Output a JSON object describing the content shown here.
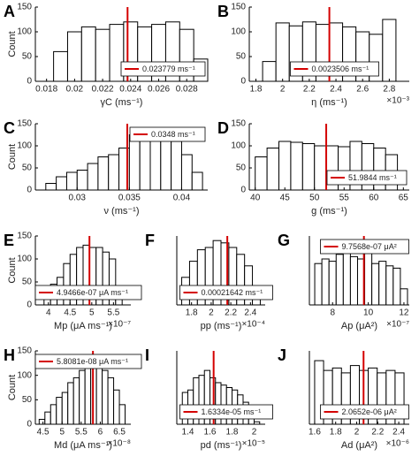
{
  "chart_data": [
    {
      "type": "histogram",
      "panel": "A",
      "xlabel": "γC (ms⁻¹)",
      "ylabel": "Count",
      "bins": [
        0.0185,
        0.0195,
        0.0205,
        0.0215,
        0.0225,
        0.0235,
        0.0245,
        0.0255,
        0.0265,
        0.0275,
        0.0285,
        0.0295
      ],
      "counts": [
        60,
        100,
        110,
        105,
        115,
        120,
        110,
        115,
        120,
        105,
        45
      ],
      "xlim": [
        0.0172,
        0.0295
      ],
      "ylim": [
        0,
        150
      ],
      "xticks": [
        0.018,
        0.02,
        0.022,
        0.024,
        0.026,
        0.028
      ],
      "yticks": [
        0,
        50,
        100,
        150
      ],
      "vline": 0.023779,
      "vline_label": "0.023779 ms⁻¹",
      "vline_color": "#d40000",
      "legend": "lower right",
      "color": "#ffffff"
    },
    {
      "type": "histogram",
      "panel": "B",
      "xlabel": "η (ms⁻¹)",
      "x_exponent": "×10⁻³",
      "bins": [
        1.85,
        1.95,
        2.05,
        2.15,
        2.25,
        2.35,
        2.45,
        2.55,
        2.65,
        2.75,
        2.85
      ],
      "counts": [
        40,
        118,
        112,
        120,
        115,
        118,
        110,
        100,
        95,
        125
      ],
      "xlim": [
        1.75,
        2.95
      ],
      "ylim": [
        0,
        150
      ],
      "xticks": [
        1.8,
        2,
        2.2,
        2.4,
        2.6,
        2.8
      ],
      "yticks": [
        0,
        50,
        100,
        150
      ],
      "vline": 2.3506,
      "vline_label": "0.0023506 ms⁻¹",
      "vline_color": "#d40000",
      "legend": "lower center",
      "color": "#ffffff"
    },
    {
      "type": "histogram",
      "panel": "C",
      "xlabel": "ν (ms⁻¹)",
      "ylabel": "Count",
      "bins": [
        0.027,
        0.028,
        0.029,
        0.03,
        0.031,
        0.032,
        0.033,
        0.034,
        0.035,
        0.036,
        0.037,
        0.038,
        0.039,
        0.04,
        0.041,
        0.042
      ],
      "counts": [
        15,
        30,
        40,
        45,
        60,
        75,
        80,
        95,
        125,
        130,
        140,
        130,
        110,
        80,
        40
      ],
      "xlim": [
        0.026,
        0.0425
      ],
      "ylim": [
        0,
        150
      ],
      "xticks": [
        0.03,
        0.035,
        0.04
      ],
      "yticks": [
        0,
        50,
        100,
        150
      ],
      "vline": 0.0348,
      "vline_label": "0.0348 ms⁻¹",
      "vline_color": "#d40000",
      "legend": "upper right",
      "color": "#ffffff"
    },
    {
      "type": "histogram",
      "panel": "D",
      "xlabel": "g (ms⁻¹)",
      "bins": [
        40,
        42,
        44,
        46,
        48,
        50,
        52,
        54,
        56,
        58,
        60,
        62,
        64
      ],
      "counts": [
        75,
        95,
        110,
        108,
        105,
        100,
        100,
        98,
        110,
        105,
        95,
        80
      ],
      "xlim": [
        39,
        66
      ],
      "ylim": [
        0,
        150
      ],
      "xticks": [
        40,
        45,
        50,
        55,
        60,
        65
      ],
      "yticks": [
        0,
        50,
        100,
        150
      ],
      "vline": 51.9844,
      "vline_label": "51.9844 ms⁻¹",
      "vline_color": "#d40000",
      "legend": "lower right",
      "color": "#ffffff"
    },
    {
      "type": "histogram",
      "panel": "E",
      "xlabel": "Mp (μA ms⁻¹)",
      "ylabel": "Count",
      "x_exponent": "×10⁻⁷",
      "bins": [
        3.9,
        4.05,
        4.2,
        4.35,
        4.5,
        4.65,
        4.8,
        4.95,
        5.1,
        5.25,
        5.4,
        5.55,
        5.7
      ],
      "counts": [
        20,
        45,
        60,
        90,
        110,
        125,
        130,
        125,
        125,
        115,
        100,
        20
      ],
      "xlim": [
        3.7,
        5.9
      ],
      "ylim": [
        0,
        150
      ],
      "xticks": [
        4,
        4.5,
        5,
        5.5
      ],
      "yticks": [
        0,
        50,
        100,
        150
      ],
      "vline": 4.9466,
      "vline_label": "4.9466e-07 μA ms⁻¹",
      "vline_color": "#d40000",
      "legend": "lower center",
      "color": "#ffffff"
    },
    {
      "type": "histogram",
      "panel": "F",
      "xlabel": "pp (ms⁻¹)",
      "x_exponent": "×10⁻⁴",
      "bins": [
        1.7,
        1.78,
        1.86,
        1.94,
        2.02,
        2.1,
        2.18,
        2.26,
        2.34,
        2.42,
        2.5
      ],
      "counts": [
        60,
        95,
        120,
        125,
        140,
        135,
        125,
        110,
        85,
        30
      ],
      "xlim": [
        1.65,
        2.55
      ],
      "ylim": [
        0,
        150
      ],
      "xticks": [
        1.8,
        2,
        2.2,
        2.4
      ],
      "vline": 2.1642,
      "vline_label": "0.00021642 ms⁻¹",
      "vline_color": "#d40000",
      "legend": "lower center",
      "color": "#ffffff"
    },
    {
      "type": "histogram",
      "panel": "G",
      "xlabel": "Ap (μA²)",
      "x_exponent": "×10⁻⁷",
      "bins": [
        7,
        7.4,
        7.8,
        8.2,
        8.6,
        9,
        9.4,
        9.8,
        10.2,
        10.6,
        11,
        11.4,
        11.8,
        12.2
      ],
      "counts": [
        90,
        100,
        95,
        110,
        120,
        105,
        100,
        115,
        90,
        95,
        85,
        80,
        35
      ],
      "xlim": [
        6.7,
        12.3
      ],
      "ylim": [
        0,
        150
      ],
      "xticks": [
        8,
        10,
        12
      ],
      "vline": 9.7568,
      "vline_label": "9.7568e-07 μA²",
      "vline_color": "#d40000",
      "legend": "upper center",
      "color": "#ffffff"
    },
    {
      "type": "histogram",
      "panel": "H",
      "xlabel": "Md (μA ms⁻¹)",
      "ylabel": "Count",
      "x_exponent": "×10⁻⁸",
      "bins": [
        4.4,
        4.55,
        4.7,
        4.85,
        5,
        5.15,
        5.3,
        5.45,
        5.6,
        5.75,
        5.9,
        6.05,
        6.2,
        6.35,
        6.5,
        6.65
      ],
      "counts": [
        10,
        25,
        40,
        55,
        65,
        85,
        95,
        110,
        120,
        125,
        120,
        110,
        95,
        70,
        40
      ],
      "xlim": [
        4.3,
        6.8
      ],
      "ylim": [
        0,
        150
      ],
      "xticks": [
        4.5,
        5,
        5.5,
        6,
        6.5
      ],
      "yticks": [
        0,
        50,
        100,
        150
      ],
      "vline": 5.8081,
      "vline_label": "5.8081e-08 μA ms⁻¹",
      "vline_color": "#d40000",
      "legend": "upper center",
      "color": "#ffffff"
    },
    {
      "type": "histogram",
      "panel": "I",
      "xlabel": "pd (ms⁻¹)",
      "x_exponent": "×10⁻⁵",
      "bins": [
        1.35,
        1.4,
        1.45,
        1.5,
        1.55,
        1.6,
        1.65,
        1.7,
        1.75,
        1.8,
        1.85,
        1.9,
        1.95,
        2,
        2.05
      ],
      "counts": [
        65,
        70,
        95,
        100,
        110,
        95,
        85,
        80,
        75,
        70,
        60,
        45,
        30,
        5
      ],
      "xlim": [
        1.3,
        2.1
      ],
      "ylim": [
        0,
        150
      ],
      "xticks": [
        1.4,
        1.6,
        1.8,
        2
      ],
      "vline": 1.6334,
      "vline_label": "1.6334e-05 ms⁻¹",
      "vline_color": "#d40000",
      "legend": "lower center",
      "color": "#ffffff"
    },
    {
      "type": "histogram",
      "panel": "J",
      "xlabel": "Ad (μA²)",
      "x_exponent": "×10⁻⁶",
      "bins": [
        1.6,
        1.685,
        1.77,
        1.855,
        1.94,
        2.025,
        2.11,
        2.195,
        2.28,
        2.365,
        2.45
      ],
      "counts": [
        130,
        110,
        115,
        105,
        120,
        110,
        115,
        105,
        110,
        105
      ],
      "xlim": [
        1.55,
        2.5
      ],
      "ylim": [
        0,
        150
      ],
      "xticks": [
        1.6,
        1.8,
        2,
        2.2,
        2.4
      ],
      "vline": 2.0652,
      "vline_label": "2.0652e-06 μA²",
      "vline_color": "#d40000",
      "legend": "lower center",
      "color": "#ffffff"
    }
  ]
}
